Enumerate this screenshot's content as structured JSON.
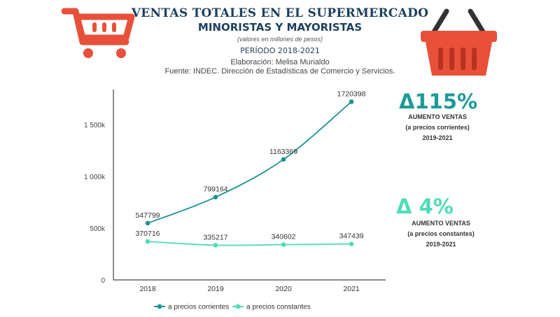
{
  "header": {
    "title": "VENTAS TOTALES EN EL SUPERMERCADO",
    "subtitle": "MINORISTAS Y MAYORISTAS",
    "units": "(valores en millones de pesos)",
    "period": "PERÍODO 2018-2021",
    "author": "Elaboración: Melisa Murialdo",
    "source": "Fuente: INDEC. Dirección de Estadísticas de Comercio y Servicios."
  },
  "icons": {
    "left": "shopping-cart-icon",
    "right": "shopping-basket-icon"
  },
  "kpis": [
    {
      "value": "Δ115%",
      "line1": "AUMENTO VENTAS",
      "line2": "(a precios corrientes)",
      "line3": "2019-2021",
      "color": "#1d9a9a"
    },
    {
      "value": "Δ 4%",
      "line1": "AUMENTO VENTAS",
      "line2": "(a precios constantes)",
      "line3": "2019-2021",
      "color": "#4fdcb8"
    }
  ],
  "colors": {
    "accent_red": "#e8503a",
    "title": "#1b3f5e"
  },
  "chart_data": {
    "type": "line",
    "categories": [
      "2018",
      "2019",
      "2020",
      "2021"
    ],
    "series": [
      {
        "name": "a precios corrientes",
        "values": [
          547799,
          799164,
          1163369,
          1720398
        ],
        "color": "#1d9393"
      },
      {
        "name": "a precios constantes",
        "values": [
          370716,
          335217,
          340602,
          347439
        ],
        "color": "#4fdcb8"
      }
    ],
    "yticks": [
      {
        "v": 0,
        "label": "0"
      },
      {
        "v": 500000,
        "label": "500k"
      },
      {
        "v": 1000000,
        "label": "1 000k"
      },
      {
        "v": 1500000,
        "label": "1 500k"
      }
    ],
    "ylim": [
      0,
      1800000
    ],
    "legend": "bottom",
    "grid": false
  }
}
